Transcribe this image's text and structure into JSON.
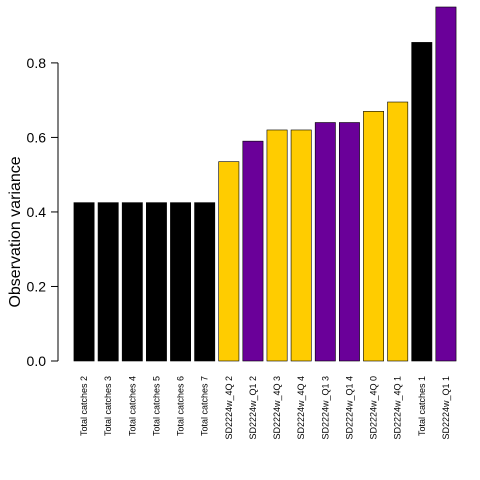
{
  "chart_data": {
    "type": "bar",
    "title": "",
    "xlabel": "",
    "ylabel": "Observation variance",
    "ylim": [
      0,
      0.95
    ],
    "yticks": [
      0.0,
      0.2,
      0.4,
      0.6,
      0.8
    ],
    "ytick_labels": [
      "0.0",
      "0.2",
      "0.4",
      "0.6",
      "0.8"
    ],
    "grid": false,
    "legend": "none",
    "colors": {
      "Total catches": "#000000",
      "SD2224w_4Q": "#FFCC00",
      "SD2224w_Q1": "#6A0099",
      "edge": "#000000"
    },
    "bars": [
      {
        "label": "Total catches 2",
        "value": 0.425,
        "group": "Total catches"
      },
      {
        "label": "Total catches 3",
        "value": 0.425,
        "group": "Total catches"
      },
      {
        "label": "Total catches 4",
        "value": 0.425,
        "group": "Total catches"
      },
      {
        "label": "Total catches 5",
        "value": 0.425,
        "group": "Total catches"
      },
      {
        "label": "Total catches 6",
        "value": 0.425,
        "group": "Total catches"
      },
      {
        "label": "Total catches 7",
        "value": 0.425,
        "group": "Total catches"
      },
      {
        "label": "SD2224w_4Q 2",
        "value": 0.535,
        "group": "SD2224w_4Q"
      },
      {
        "label": "SD2224w_Q1 2",
        "value": 0.59,
        "group": "SD2224w_Q1"
      },
      {
        "label": "SD2224w_4Q 3",
        "value": 0.62,
        "group": "SD2224w_4Q"
      },
      {
        "label": "SD2224w_4Q 4",
        "value": 0.62,
        "group": "SD2224w_4Q"
      },
      {
        "label": "SD2224w_Q1 3",
        "value": 0.64,
        "group": "SD2224w_Q1"
      },
      {
        "label": "SD2224w_Q1 4",
        "value": 0.64,
        "group": "SD2224w_Q1"
      },
      {
        "label": "SD2224w_4Q 0",
        "value": 0.67,
        "group": "SD2224w_4Q"
      },
      {
        "label": "SD2224w_4Q 1",
        "value": 0.695,
        "group": "SD2224w_4Q"
      },
      {
        "label": "Total catches 1",
        "value": 0.855,
        "group": "Total catches"
      },
      {
        "label": "SD2224w_Q1 1",
        "value": 0.95,
        "group": "SD2224w_Q1"
      }
    ]
  }
}
